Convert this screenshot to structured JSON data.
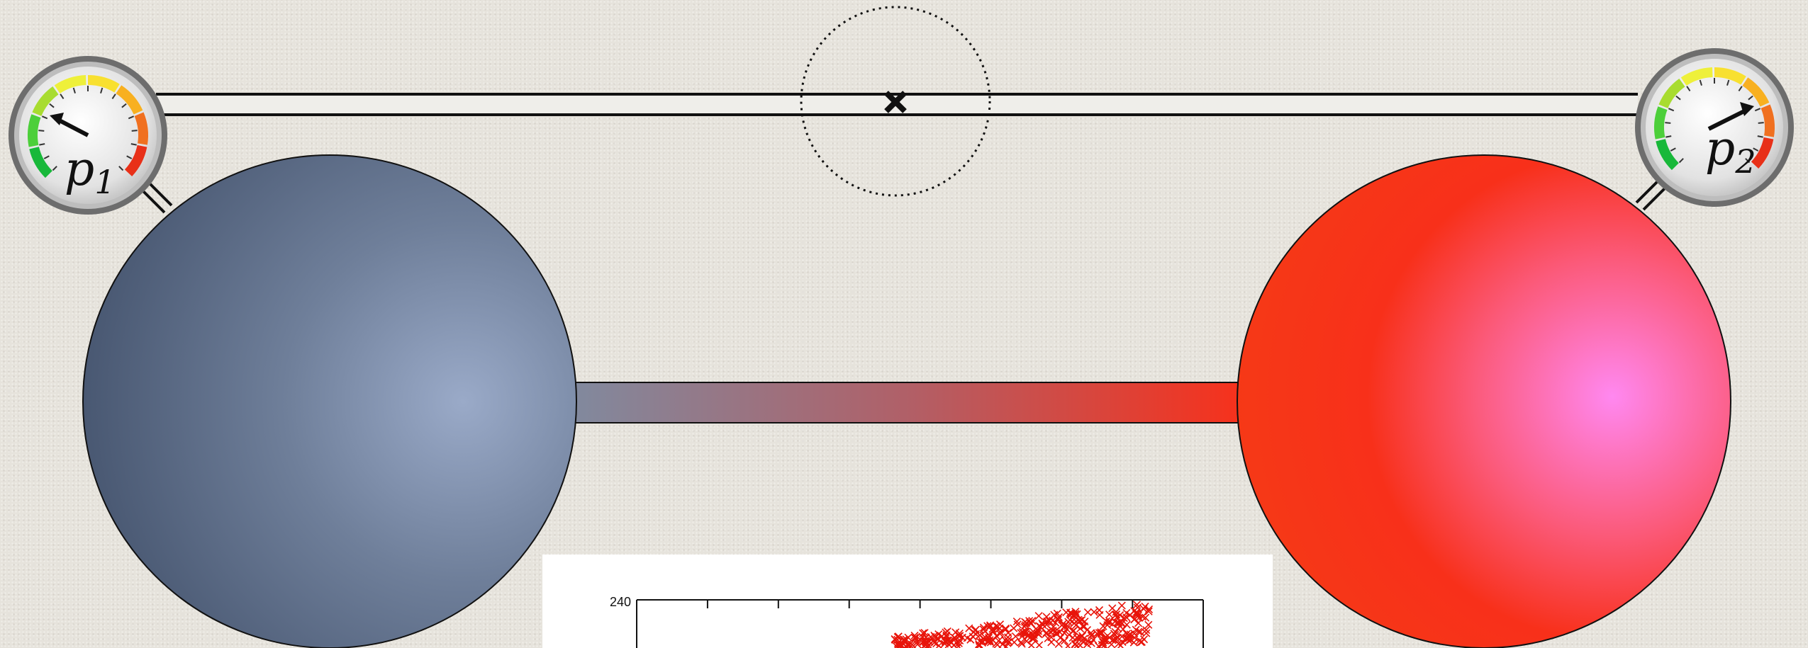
{
  "gauges": [
    {
      "label": "p",
      "subscript": "1",
      "needle": "low"
    },
    {
      "label": "p",
      "subscript": "2",
      "needle": "high"
    }
  ],
  "valve": {
    "icon": "closed-valve-icon"
  },
  "vessels": [
    {
      "name": "left-vessel",
      "color": "#4a5a74",
      "highlight": "#9aaac8"
    },
    {
      "name": "right-vessel",
      "color": "#f8301a",
      "highlight": "#ff88ee"
    }
  ],
  "connector": {
    "from_color": "#7f8ba0",
    "to_color": "#f8301a"
  },
  "inset_plot": {
    "y_tick_top": "240",
    "marker": "x",
    "marker_color": "#e8140a"
  }
}
